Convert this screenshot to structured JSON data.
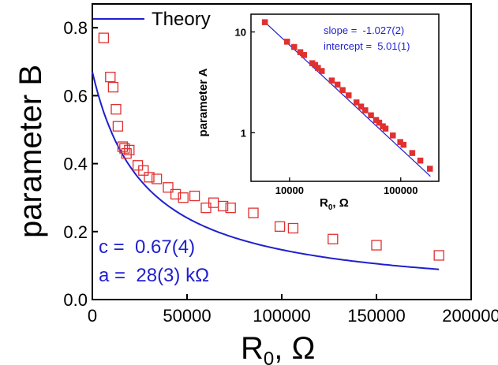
{
  "chart_data": [
    {
      "type": "scatter",
      "xlabel": "R",
      "xlabel_sub": "0",
      "xlabel_suffix": ", Ω",
      "ylabel": "parameter B",
      "xlim": [
        0,
        200000
      ],
      "ylim": [
        0,
        0.87
      ],
      "x_ticks": [
        0,
        50000,
        100000,
        150000,
        200000
      ],
      "x_tick_labels": [
        "0",
        "50000",
        "100000",
        "150000",
        "200000"
      ],
      "y_ticks": [
        0.0,
        0.2,
        0.4,
        0.6,
        0.8
      ],
      "y_tick_labels": [
        "0.0",
        "0.2",
        "0.4",
        "0.6",
        "0.8"
      ],
      "series": [
        {
          "marker": "open-square",
          "color": "#e03030",
          "x": [
            6000,
            9500,
            11000,
            12500,
            13500,
            16000,
            17000,
            18000,
            19500,
            24000,
            27000,
            30000,
            34000,
            40000,
            44000,
            48000,
            54000,
            60000,
            64000,
            69000,
            73000,
            85000,
            99000,
            106000,
            127000,
            150000,
            183000
          ],
          "y": [
            0.77,
            0.655,
            0.625,
            0.56,
            0.51,
            0.45,
            0.445,
            0.43,
            0.44,
            0.395,
            0.38,
            0.36,
            0.355,
            0.33,
            0.31,
            0.3,
            0.305,
            0.27,
            0.285,
            0.275,
            0.27,
            0.255,
            0.215,
            0.21,
            0.178,
            0.16,
            0.13
          ]
        },
        {
          "name": "Theory",
          "marker": "line",
          "color": "#1f1fcf",
          "params": {
            "c": 0.67,
            "a": 28000
          },
          "x_range": [
            0,
            183000
          ]
        }
      ],
      "legend": {
        "entries": [
          "Theory"
        ],
        "placement": "top"
      },
      "annotations": [
        "c =  0.67(4)",
        "a =  28(3) kΩ"
      ]
    },
    {
      "type": "scatter",
      "scale": "log-log",
      "xlabel": "R",
      "xlabel_sub": "0",
      "xlabel_suffix": ", Ω",
      "ylabel": "parameter A",
      "xlim": [
        4500,
        220000
      ],
      "ylim": [
        0.33,
        15
      ],
      "x_ticks": [
        10000,
        100000
      ],
      "x_tick_labels": [
        "10000",
        "100000"
      ],
      "y_ticks": [
        1,
        10
      ],
      "y_tick_labels": [
        "1",
        "10"
      ],
      "series": [
        {
          "marker": "filled-square",
          "color": "#e03030",
          "x": [
            6000,
            9500,
            11000,
            12500,
            13500,
            16000,
            17000,
            18000,
            19500,
            24000,
            27000,
            30000,
            34000,
            40000,
            44000,
            48000,
            54000,
            60000,
            64000,
            69000,
            73000,
            85000,
            99000,
            106000,
            127000,
            150000,
            183000
          ],
          "y": [
            12.5,
            8.0,
            7.1,
            6.3,
            5.9,
            4.9,
            4.7,
            4.4,
            4.1,
            3.3,
            3.0,
            2.65,
            2.35,
            2.0,
            1.82,
            1.67,
            1.49,
            1.34,
            1.26,
            1.16,
            1.1,
            0.94,
            0.81,
            0.76,
            0.63,
            0.53,
            0.44
          ]
        },
        {
          "marker": "line",
          "color": "#1f1fcf",
          "slope": -1.027,
          "intercept": 5.01,
          "x_range": [
            6000,
            185000
          ]
        }
      ],
      "annotations": [
        "slope =  -1.027(2)",
        "intercept =  5.01(1)"
      ]
    }
  ]
}
